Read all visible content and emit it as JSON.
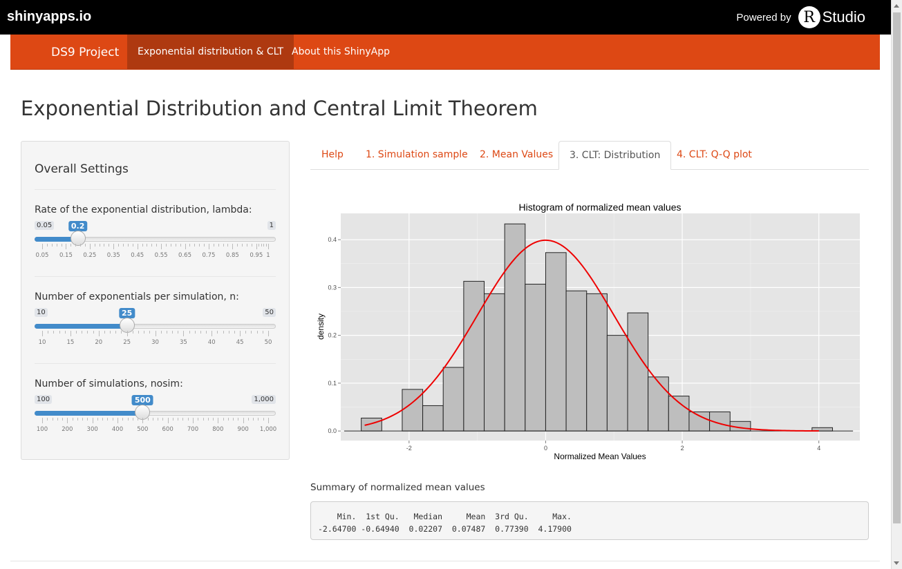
{
  "topbar": {
    "brand": "shinyapps.io",
    "powered_by": "Powered by",
    "r_logo": "R",
    "studio": "Studio"
  },
  "navbar": {
    "brand": "DS9 Project",
    "items": [
      {
        "label": "Exponential distribution & CLT",
        "active": true
      },
      {
        "label": "About this ShinyApp",
        "active": false
      }
    ]
  },
  "page": {
    "title": "Exponential Distribution and Central Limit Theorem"
  },
  "sidebar": {
    "title": "Overall Settings",
    "sliders": [
      {
        "label": "Rate of the exponential distribution, lambda:",
        "min": "0.05",
        "max": "1",
        "value": "0.2",
        "min_num": 0.05,
        "max_num": 1,
        "value_num": 0.2,
        "ticks": [
          "0.05",
          "0.15",
          "0.25",
          "0.35",
          "0.45",
          "0.55",
          "0.65",
          "0.75",
          "0.85",
          "0.95",
          "1"
        ],
        "tick_values": [
          0.05,
          0.15,
          0.25,
          0.35,
          0.45,
          0.55,
          0.65,
          0.75,
          0.85,
          0.95,
          1
        ]
      },
      {
        "label": "Number of exponentials per simulation, n:",
        "min": "10",
        "max": "50",
        "value": "25",
        "min_num": 10,
        "max_num": 50,
        "value_num": 25,
        "ticks": [
          "10",
          "15",
          "20",
          "25",
          "30",
          "35",
          "40",
          "45",
          "50"
        ],
        "tick_values": [
          10,
          15,
          20,
          25,
          30,
          35,
          40,
          45,
          50
        ]
      },
      {
        "label": "Number of simulations, nosim:",
        "min": "100",
        "max": "1,000",
        "value": "500",
        "min_num": 100,
        "max_num": 1000,
        "value_num": 500,
        "ticks": [
          "100",
          "200",
          "300",
          "400",
          "500",
          "600",
          "700",
          "800",
          "900",
          "1,000"
        ],
        "tick_values": [
          100,
          200,
          300,
          400,
          500,
          600,
          700,
          800,
          900,
          1000
        ]
      }
    ]
  },
  "tabs": [
    {
      "label": "Help",
      "active": false
    },
    {
      "label": "1. Simulation sample",
      "active": false
    },
    {
      "label": "2. Mean Values",
      "active": false
    },
    {
      "label": "3. CLT: Distribution",
      "active": true
    },
    {
      "label": "4. CLT: Q-Q plot",
      "active": false
    }
  ],
  "chart_data": {
    "type": "bar",
    "title": "Histogram of normalized mean values",
    "xlabel": "Normalized Mean Values",
    "ylabel": "density",
    "xlim": [
      -3.0,
      4.6
    ],
    "ylim": [
      -0.02,
      0.455
    ],
    "xticks": [
      -2,
      0,
      2,
      4
    ],
    "xtick_labels": [
      "-2",
      "0",
      "2",
      "4"
    ],
    "yticks": [
      0.0,
      0.1,
      0.2,
      0.3,
      0.4
    ],
    "ytick_labels": [
      "0.0",
      "0.1",
      "0.2",
      "0.3",
      "0.4"
    ],
    "grid": true,
    "bin_width": 0.3,
    "bins": [
      {
        "x0": -2.7,
        "density": 0.027
      },
      {
        "x0": -2.4,
        "density": 0.0
      },
      {
        "x0": -2.1,
        "density": 0.087
      },
      {
        "x0": -1.8,
        "density": 0.053
      },
      {
        "x0": -1.5,
        "density": 0.133
      },
      {
        "x0": -1.2,
        "density": 0.313
      },
      {
        "x0": -0.9,
        "density": 0.287
      },
      {
        "x0": -0.6,
        "density": 0.433
      },
      {
        "x0": -0.3,
        "density": 0.307
      },
      {
        "x0": 0.0,
        "density": 0.373
      },
      {
        "x0": 0.3,
        "density": 0.293
      },
      {
        "x0": 0.6,
        "density": 0.287
      },
      {
        "x0": 0.9,
        "density": 0.2
      },
      {
        "x0": 1.2,
        "density": 0.247
      },
      {
        "x0": 1.5,
        "density": 0.113
      },
      {
        "x0": 1.8,
        "density": 0.073
      },
      {
        "x0": 2.1,
        "density": 0.04
      },
      {
        "x0": 2.4,
        "density": 0.04
      },
      {
        "x0": 2.7,
        "density": 0.02
      },
      {
        "x0": 3.0,
        "density": 0.0
      },
      {
        "x0": 3.3,
        "density": 0.0
      },
      {
        "x0": 3.6,
        "density": 0.0
      },
      {
        "x0": 3.9,
        "density": 0.007
      }
    ],
    "baseline_range": [
      -2.95,
      4.5
    ],
    "curve": {
      "type": "normal-density",
      "mean": 0,
      "sd": 1,
      "range": [
        -2.65,
        4.0
      ],
      "color": "#ee0000"
    },
    "colors": {
      "panel": "#e5e5e5",
      "bar_fill": "#bebebe",
      "bar_stroke": "#222222"
    }
  },
  "summary": {
    "label": "Summary of normalized mean values",
    "line1": "    Min.  1st Qu.   Median     Mean  3rd Qu.     Max. ",
    "line2": "-2.64700 -0.64940  0.02207  0.07487  0.77390  4.17900 "
  }
}
